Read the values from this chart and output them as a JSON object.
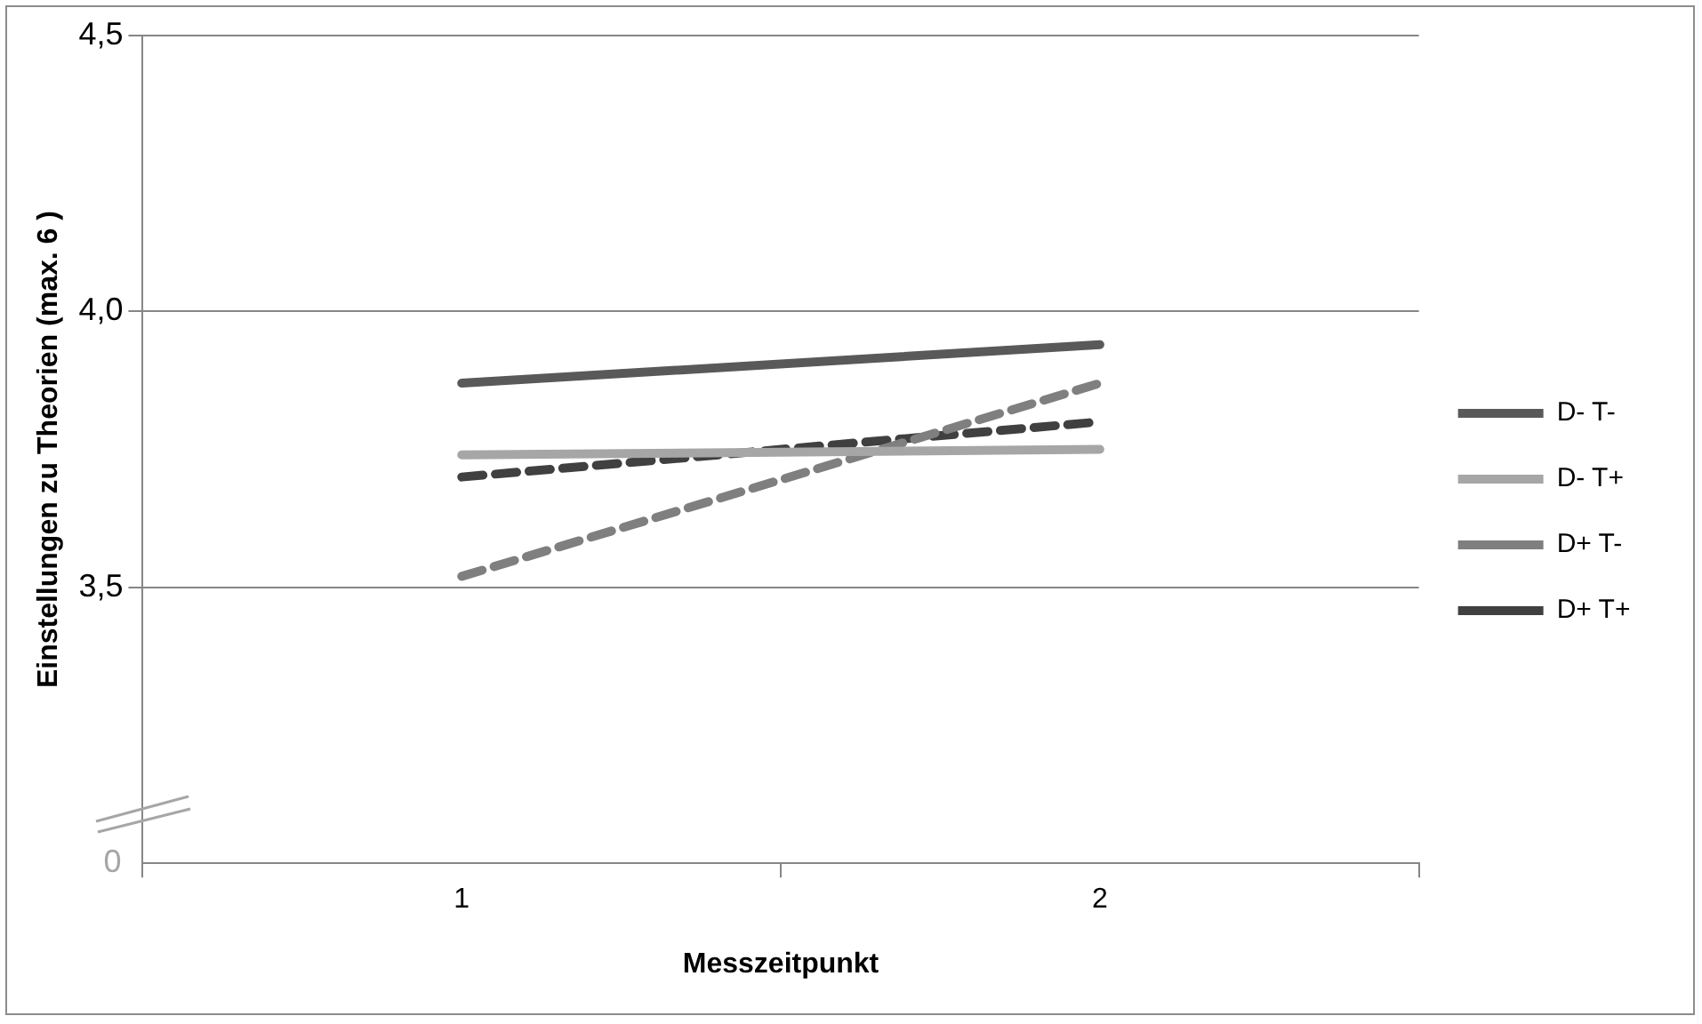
{
  "chart_data": {
    "type": "line",
    "xlabel": "Messzeitpunkt",
    "ylabel": "Einstellungen zu Theorien (max. 6 )",
    "categories": [
      "1",
      "2"
    ],
    "series": [
      {
        "name": "D- T-",
        "color": "#595959",
        "line_style": "solid",
        "values": [
          3.87,
          3.94
        ]
      },
      {
        "name": "D- T+",
        "color": "#a6a6a6",
        "line_style": "solid",
        "values": [
          3.74,
          3.75
        ]
      },
      {
        "name": "D+ T-",
        "color": "#7f7f7f",
        "line_style": "dashed",
        "values": [
          3.52,
          3.87
        ]
      },
      {
        "name": "D+ T+",
        "color": "#404040",
        "line_style": "dashed",
        "values": [
          3.7,
          3.8
        ]
      }
    ],
    "ylim": [
      3,
      4.5
    ],
    "yticks": [
      {
        "value": 3.5,
        "label": "3,5"
      },
      {
        "value": 4,
        "label": "4,0"
      },
      {
        "value": 4.5,
        "label": "4,5"
      }
    ],
    "annotations": [
      "0"
    ],
    "grid": "y",
    "legend": "right",
    "marker": "none"
  }
}
